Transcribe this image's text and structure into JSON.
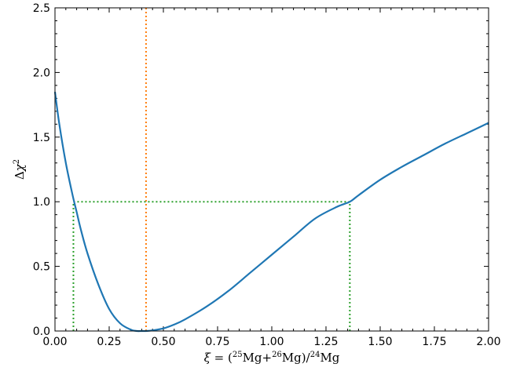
{
  "chart_data": {
    "type": "line",
    "xlim": [
      0.0,
      2.0
    ],
    "ylim": [
      0.0,
      2.5
    ],
    "x_ticks": [
      "0.00",
      "0.25",
      "0.50",
      "0.75",
      "1.00",
      "1.25",
      "1.50",
      "1.75",
      "2.00"
    ],
    "y_ticks": [
      "0.0",
      "0.5",
      "1.0",
      "1.5",
      "2.0",
      "2.5"
    ],
    "xlabel": {
      "symbol": "ξ",
      "equals": " = (",
      "iso25": "25",
      "mg1": "Mg+",
      "iso26": "26",
      "mg2": "Mg)/",
      "iso24": "24",
      "mg3": "Mg"
    },
    "ylabel": {
      "delta": "Δ",
      "chi": "χ",
      "power": "2"
    },
    "grid": false,
    "series": [
      {
        "color": "#1f77b4",
        "x": [
          0.0,
          0.02,
          0.05,
          0.08,
          0.1,
          0.12,
          0.15,
          0.2,
          0.25,
          0.3,
          0.35,
          0.38,
          0.4,
          0.42,
          0.45,
          0.5,
          0.55,
          0.6,
          0.7,
          0.8,
          0.9,
          1.0,
          1.1,
          1.2,
          1.3,
          1.36,
          1.4,
          1.5,
          1.6,
          1.7,
          1.8,
          1.9,
          2.0
        ],
        "y": [
          1.85,
          1.6,
          1.3,
          1.06,
          0.92,
          0.78,
          0.6,
          0.36,
          0.17,
          0.06,
          0.01,
          0.0,
          0.0,
          0.0,
          0.005,
          0.02,
          0.05,
          0.09,
          0.19,
          0.31,
          0.45,
          0.59,
          0.73,
          0.87,
          0.96,
          1.0,
          1.05,
          1.17,
          1.27,
          1.36,
          1.45,
          1.53,
          1.61
        ]
      }
    ],
    "reference_lines": [
      {
        "orientation": "vertical",
        "x": 0.42,
        "y_from": 0.0,
        "y_to": 2.5,
        "color": "#ff7f0e",
        "style": "dotted"
      },
      {
        "orientation": "horizontal",
        "y": 1.0,
        "x_from": 0.085,
        "x_to": 1.36,
        "color": "#2ca02c",
        "style": "dotted"
      },
      {
        "orientation": "vertical",
        "x": 0.085,
        "y_from": 0.0,
        "y_to": 1.0,
        "color": "#2ca02c",
        "style": "dotted"
      },
      {
        "orientation": "vertical",
        "x": 1.36,
        "y_from": 0.0,
        "y_to": 1.0,
        "color": "#2ca02c",
        "style": "dotted"
      }
    ]
  }
}
